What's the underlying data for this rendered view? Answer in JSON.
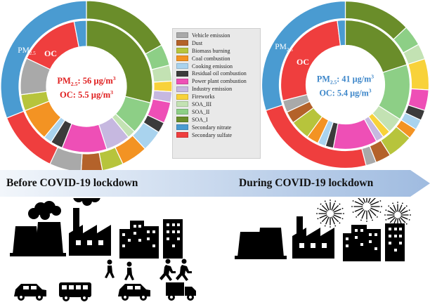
{
  "banner": {
    "before_label": "Before COVID-19 lockdown",
    "during_label": "During COVID-19 lockdown",
    "arrow_color_start": "#f2f6fb",
    "arrow_color_end": "#9fbbe0"
  },
  "legend": {
    "items": [
      {
        "label": "Vehicle emission",
        "color": "#a9a9a9"
      },
      {
        "label": "Dust",
        "color": "#b4622a"
      },
      {
        "label": "Biomass burning",
        "color": "#b7c43c"
      },
      {
        "label": "Coal combustion",
        "color": "#f39323"
      },
      {
        "label": "Cooking emission",
        "color": "#a9d3ee"
      },
      {
        "label": "Residual oil combustion",
        "color": "#3b3b3b"
      },
      {
        "label": "Power plant combustion",
        "color": "#ee4fb6"
      },
      {
        "label": "Industry emission",
        "color": "#c6b8e0"
      },
      {
        "label": "Fireworks",
        "color": "#f8d23a"
      },
      {
        "label": "SOA_III",
        "color": "#c3e2b3"
      },
      {
        "label": "SOA_II",
        "color": "#8dcf86"
      },
      {
        "label": "SOA_I",
        "color": "#6a8d2a"
      },
      {
        "label": "Secondary nitrate",
        "color": "#4a9bd1"
      },
      {
        "label": "Secondary sulfate",
        "color": "#ef3e3e"
      }
    ]
  },
  "chart_data": [
    {
      "type": "pie",
      "panel": "Before COVID-19 lockdown",
      "center_text": {
        "pm_label": "PM",
        "pm_sub": "2.5",
        "pm_value": ": 56 µg/m",
        "pm_sup": "3",
        "oc_label": "OC: 5.5 µg/m",
        "oc_sup": "3",
        "color": "#e02020"
      },
      "ring_labels": {
        "outer_main": "PM",
        "outer_sub": "2.5",
        "inner": "OC"
      },
      "outer_ring": {
        "name": "PM2.5",
        "slices": [
          {
            "source": "SOA_I",
            "value": 17
          },
          {
            "source": "SOA_II",
            "value": 4
          },
          {
            "source": "SOA_III",
            "value": 3
          },
          {
            "source": "Fireworks",
            "value": 2
          },
          {
            "source": "Industry emission",
            "value": 2
          },
          {
            "source": "Power plant combustion",
            "value": 4
          },
          {
            "source": "Residual oil combustion",
            "value": 2
          },
          {
            "source": "Cooking emission",
            "value": 4
          },
          {
            "source": "Coal combustion",
            "value": 5
          },
          {
            "source": "Biomass burning",
            "value": 4
          },
          {
            "source": "Dust",
            "value": 4
          },
          {
            "source": "Vehicle emission",
            "value": 6
          },
          {
            "source": "Secondary sulfate",
            "value": 12
          },
          {
            "source": "Secondary nitrate",
            "value": 31
          }
        ]
      },
      "inner_ring": {
        "name": "OC",
        "slices": [
          {
            "source": "SOA_I",
            "value": 29
          },
          {
            "source": "SOA_II",
            "value": 8
          },
          {
            "source": "SOA_III",
            "value": 2
          },
          {
            "source": "Industry emission",
            "value": 6
          },
          {
            "source": "Power plant combustion",
            "value": 11
          },
          {
            "source": "Residual oil combustion",
            "value": 3
          },
          {
            "source": "Cooking emission",
            "value": 2
          },
          {
            "source": "Coal combustion",
            "value": 8
          },
          {
            "source": "Biomass burning",
            "value": 4
          },
          {
            "source": "Vehicle emission",
            "value": 9
          },
          {
            "source": "Secondary sulfate",
            "value": 15
          },
          {
            "source": "Secondary nitrate",
            "value": 3
          }
        ]
      }
    },
    {
      "type": "pie",
      "panel": "During COVID-19 lockdown",
      "center_text": {
        "pm_label": "PM",
        "pm_sub": "2.5",
        "pm_value": ": 41 µg/m",
        "pm_sup": "3",
        "oc_label": "OC: 5.4 µg/m",
        "oc_sup": "3",
        "color": "#3c86c9"
      },
      "ring_labels": {
        "outer_main": "PM",
        "outer_sub": "2.5",
        "inner": "OC"
      },
      "outer_ring": {
        "name": "PM2.5",
        "slices": [
          {
            "source": "SOA_I",
            "value": 13
          },
          {
            "source": "SOA_II",
            "value": 4
          },
          {
            "source": "SOA_III",
            "value": 3
          },
          {
            "source": "Fireworks",
            "value": 6
          },
          {
            "source": "Power plant combustion",
            "value": 4
          },
          {
            "source": "Residual oil combustion",
            "value": 2
          },
          {
            "source": "Cooking emission",
            "value": 2
          },
          {
            "source": "Coal combustion",
            "value": 2
          },
          {
            "source": "Biomass burning",
            "value": 5
          },
          {
            "source": "Dust",
            "value": 3
          },
          {
            "source": "Vehicle emission",
            "value": 2
          },
          {
            "source": "Secondary sulfate",
            "value": 24
          },
          {
            "source": "Secondary nitrate",
            "value": 30
          }
        ]
      },
      "inner_ring": {
        "name": "OC",
        "slices": [
          {
            "source": "SOA_I",
            "value": 20
          },
          {
            "source": "SOA_II",
            "value": 14
          },
          {
            "source": "SOA_III",
            "value": 4
          },
          {
            "source": "Fireworks",
            "value": 2
          },
          {
            "source": "Industry emission",
            "value": 2
          },
          {
            "source": "Power plant combustion",
            "value": 11
          },
          {
            "source": "Residual oil combustion",
            "value": 2
          },
          {
            "source": "Cooking emission",
            "value": 2
          },
          {
            "source": "Coal combustion",
            "value": 3
          },
          {
            "source": "Biomass burning",
            "value": 5
          },
          {
            "source": "Dust",
            "value": 3
          },
          {
            "source": "Vehicle emission",
            "value": 3
          },
          {
            "source": "Secondary sulfate",
            "value": 27
          },
          {
            "source": "Secondary nitrate",
            "value": 2
          }
        ]
      }
    }
  ],
  "scene": {
    "before_icons": [
      "power-plant-icon",
      "factory-icon",
      "apartment-buildings-icon",
      "walking-people-icon",
      "running-people-icon",
      "car-icon",
      "bus-icon",
      "car-icon",
      "truck-icon"
    ],
    "during_icons": [
      "power-plant-icon",
      "factory-icon",
      "apartment-buildings-icon",
      "fireworks-icon"
    ]
  }
}
